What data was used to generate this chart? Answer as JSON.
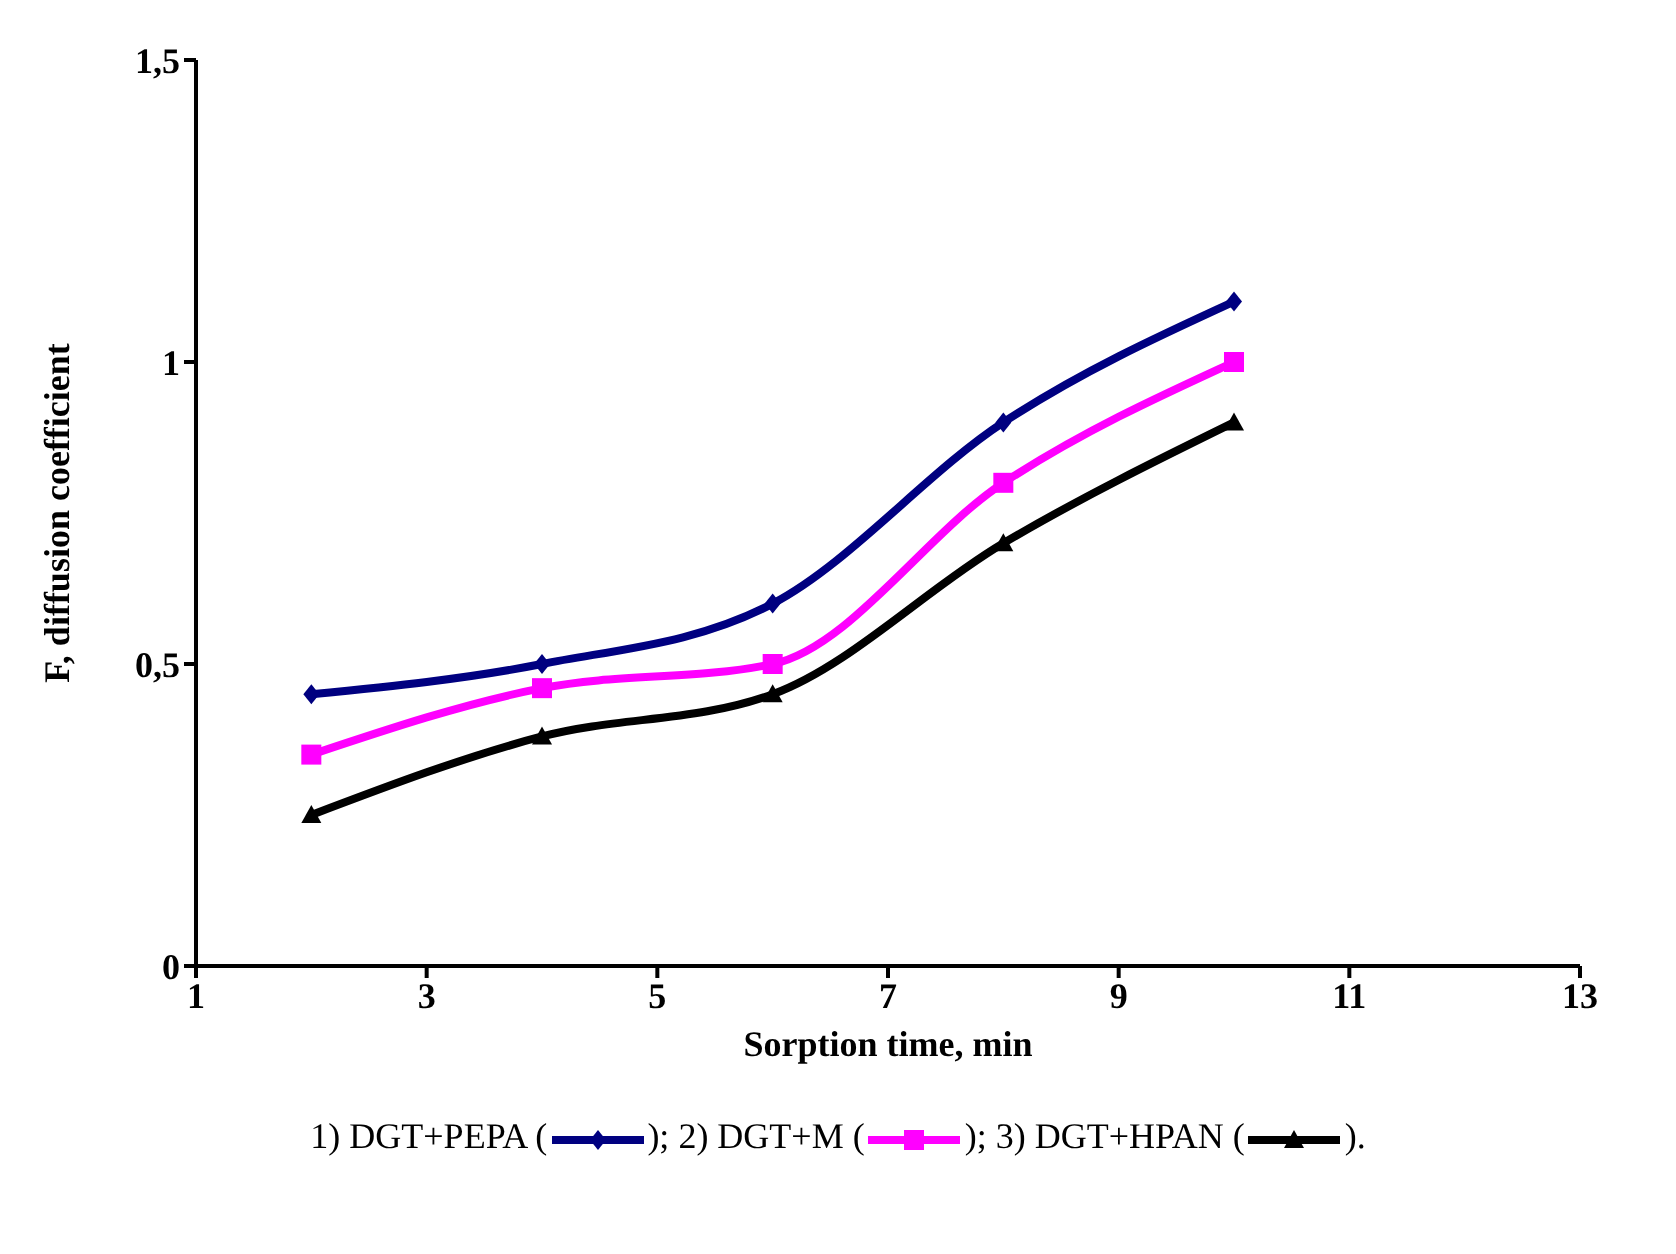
{
  "chart_data": {
    "type": "line",
    "xlabel": "Sorption time, min",
    "ylabel": "F, diffusion coefficient",
    "x": [
      2,
      4,
      6,
      8,
      10
    ],
    "series": [
      {
        "name": "1) DGT+PEPA (",
        "color": "#000080",
        "marker": "diamond",
        "values": [
          0.45,
          0.5,
          0.6,
          0.9,
          1.1
        ]
      },
      {
        "name": "2) DGT+M (",
        "color": "#ff00ff",
        "marker": "square",
        "values": [
          0.35,
          0.46,
          0.5,
          0.8,
          1.0
        ]
      },
      {
        "name": "3) DGT+HPAN (",
        "color": "#000000",
        "marker": "triangle",
        "values": [
          0.25,
          0.38,
          0.45,
          0.7,
          0.9
        ]
      }
    ],
    "xlim": [
      1,
      13
    ],
    "xticks": [
      1,
      3,
      5,
      7,
      9,
      11,
      13
    ],
    "ylim": [
      0,
      1.5
    ],
    "yticks": [
      0,
      {
        "value": 0.5,
        "label": "0,5"
      },
      1,
      {
        "value": 1.5,
        "label": "1,5"
      }
    ],
    "annotations": [
      ");",
      ");",
      ")."
    ],
    "legend": "bottom",
    "line_style": "solid"
  }
}
